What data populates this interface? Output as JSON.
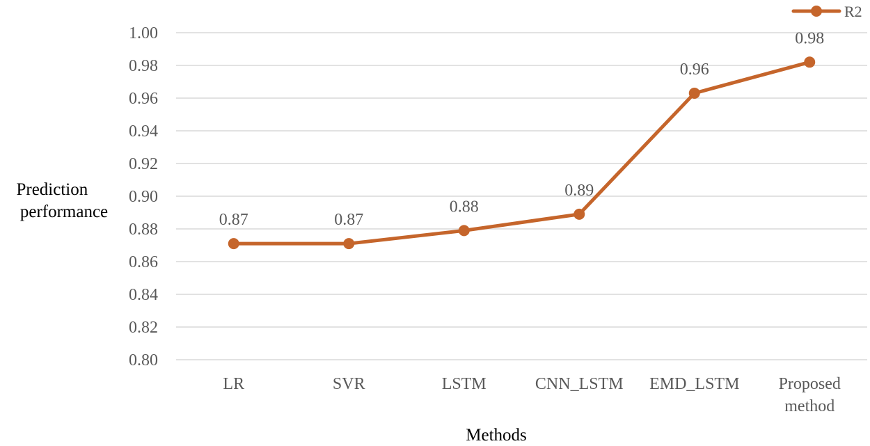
{
  "chart_data": {
    "type": "line",
    "title": "",
    "xlabel": "Methods",
    "ylabel_lines": [
      "Prediction",
      "performance"
    ],
    "ylim": [
      0.8,
      1.0
    ],
    "yticks": [
      "0.80",
      "0.82",
      "0.84",
      "0.86",
      "0.88",
      "0.90",
      "0.92",
      "0.94",
      "0.96",
      "0.98",
      "1.00"
    ],
    "categories": [
      [
        "LR"
      ],
      [
        "SVR"
      ],
      [
        "LSTM"
      ],
      [
        "CNN_LSTM"
      ],
      [
        "EMD_LSTM"
      ],
      [
        "Proposed",
        "method"
      ]
    ],
    "grid": true,
    "legend_position": "top-right",
    "series": [
      {
        "name": "R2",
        "color": "#C5652B",
        "values": [
          0.871,
          0.871,
          0.879,
          0.889,
          0.963,
          0.982
        ],
        "data_labels": [
          "0.87",
          "0.87",
          "0.88",
          "0.89",
          "0.96",
          "0.98"
        ]
      }
    ]
  }
}
